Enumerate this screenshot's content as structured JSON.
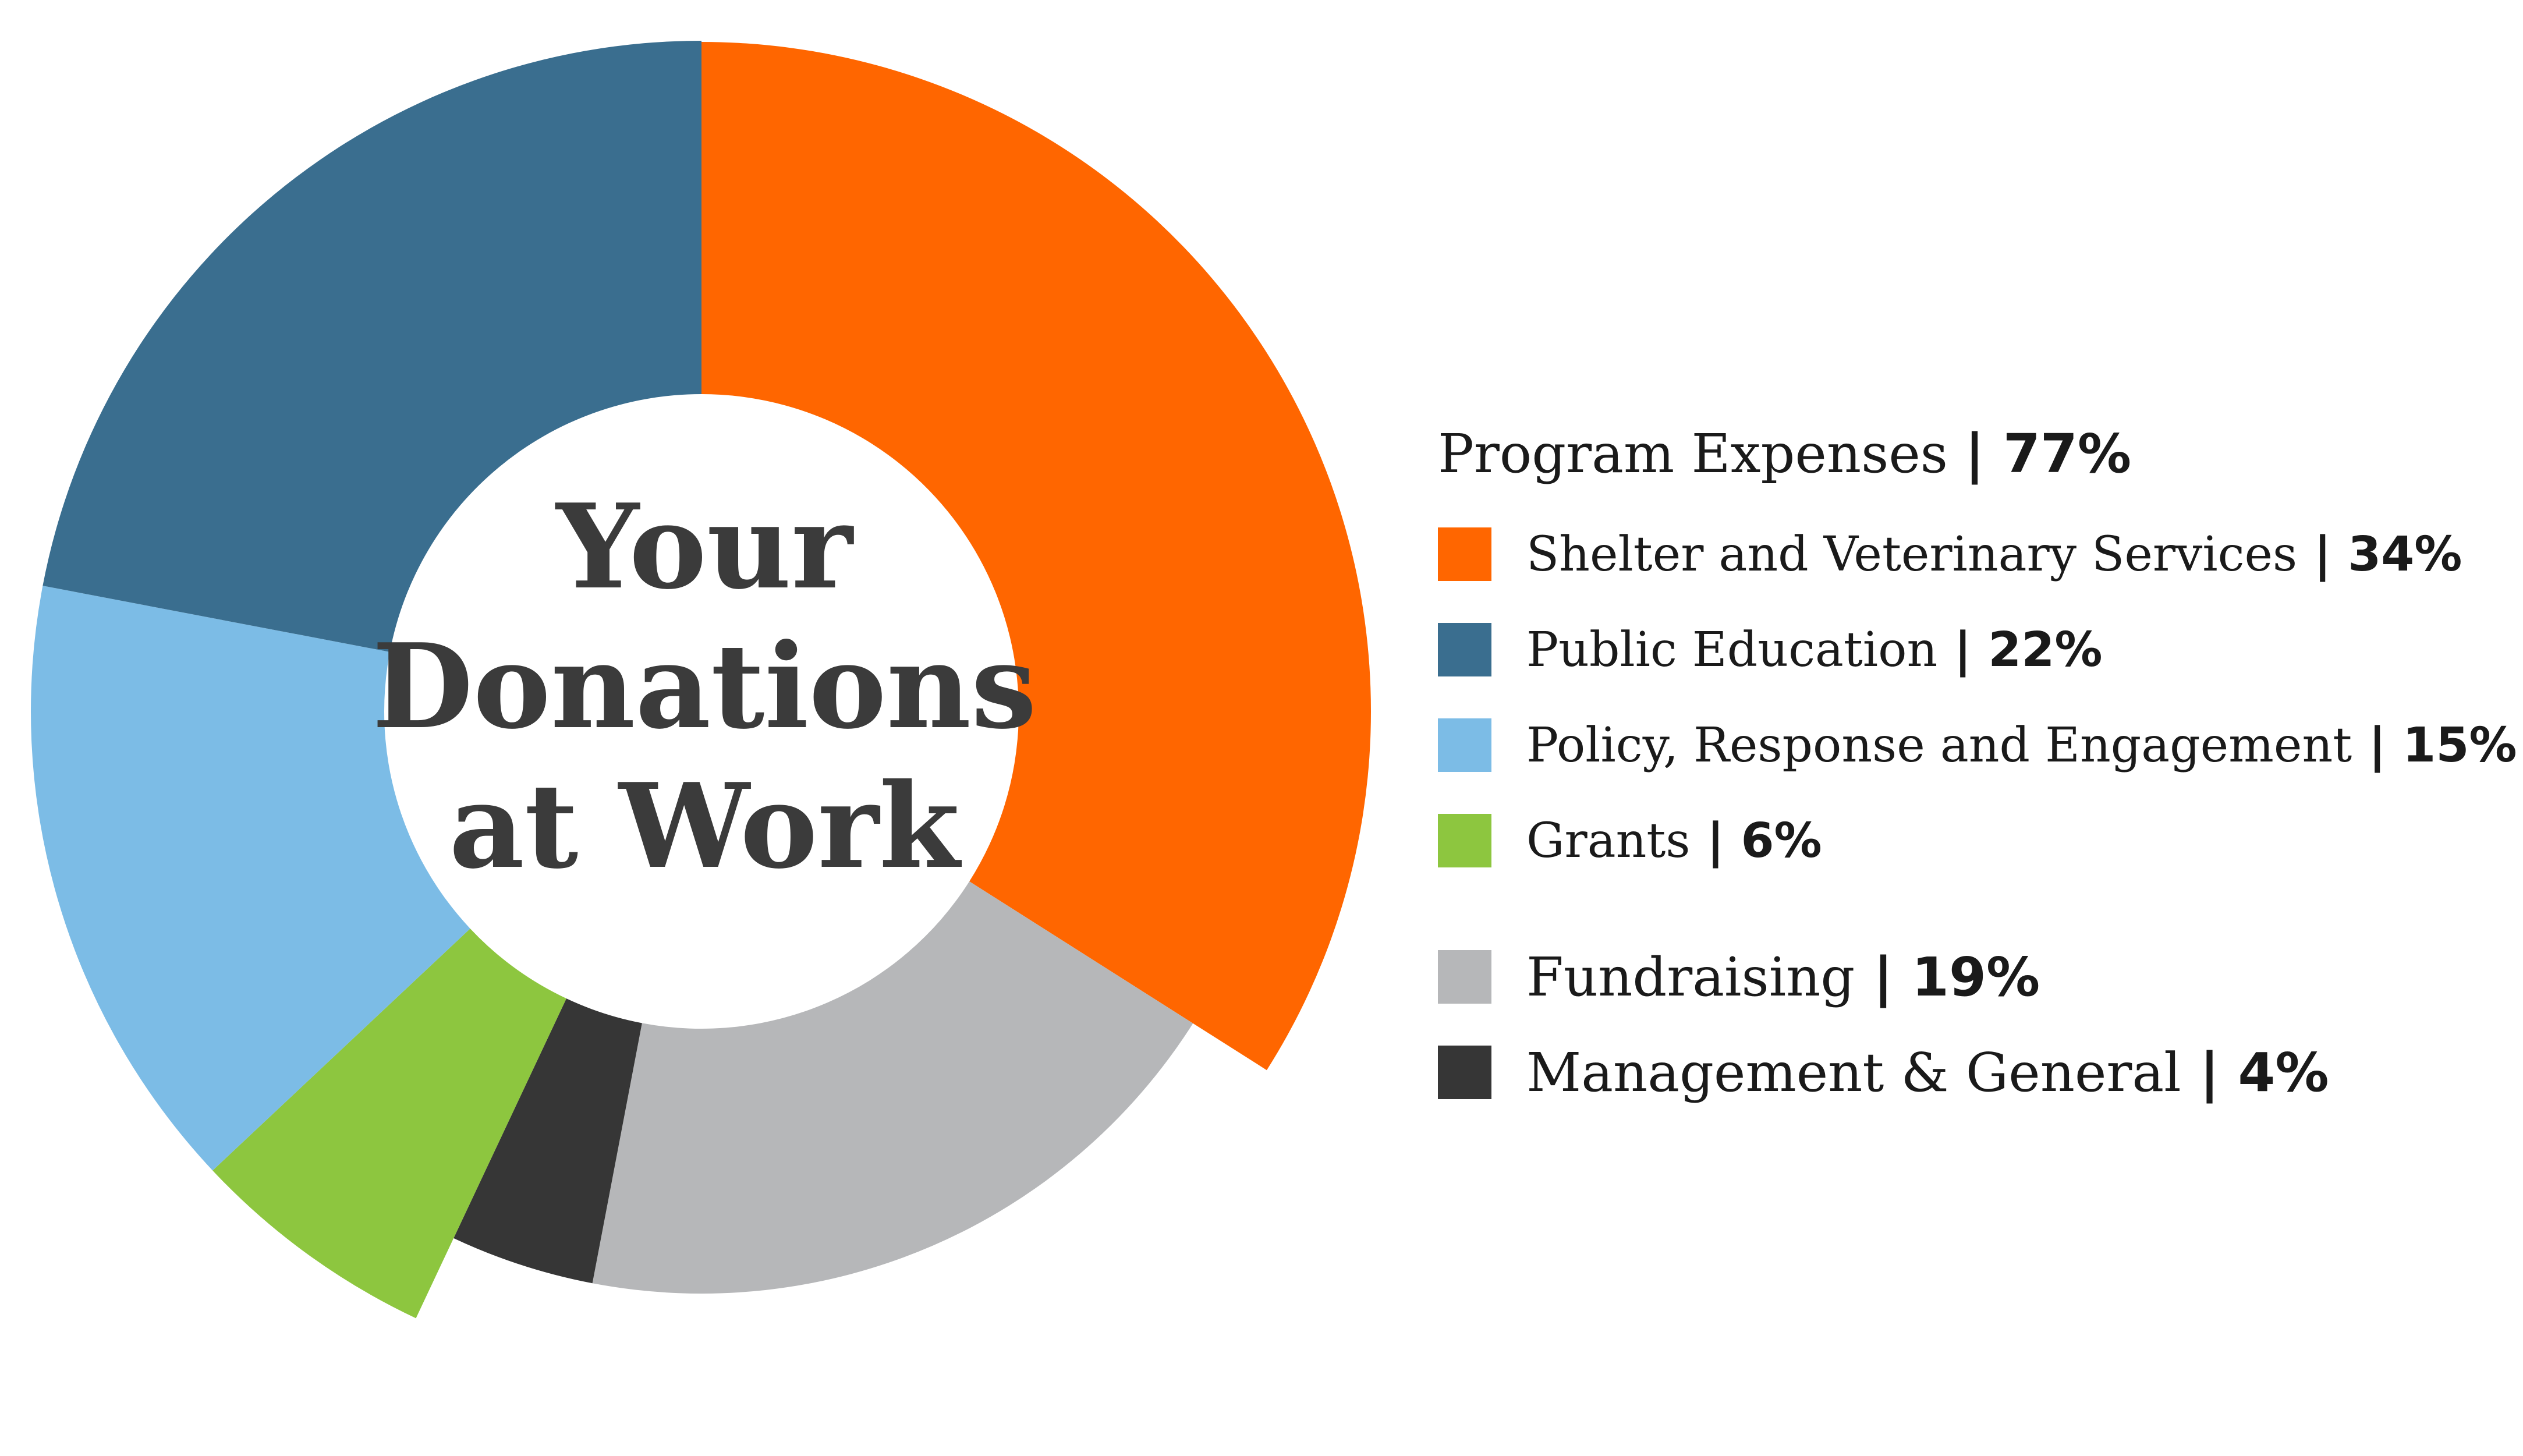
{
  "chart_data": {
    "type": "pie",
    "title": "Your Donations at Work",
    "title_lines": [
      "Your",
      "Donations",
      "at Work"
    ],
    "group": {
      "label": "Program Expenses",
      "value": 77,
      "display": "77%"
    },
    "slices": [
      {
        "key": "shelter",
        "label": "Shelter and Veterinary Services",
        "value": 34,
        "display": "34%",
        "color": "#ff6600",
        "radius": "outer"
      },
      {
        "key": "fundraising",
        "label": "Fundraising",
        "value": 19,
        "display": "19%",
        "color": "#b6b7b9",
        "radius": "inner"
      },
      {
        "key": "management",
        "label": "Management & General",
        "value": 4,
        "display": "4%",
        "color": "#363636",
        "radius": "inner"
      },
      {
        "key": "grants",
        "label": "Grants",
        "value": 6,
        "display": "6%",
        "color": "#8dc63f",
        "radius": "base"
      },
      {
        "key": "policy",
        "label": "Policy, Response and Engagement",
        "value": 15,
        "display": "15%",
        "color": "#7cbce6",
        "radius": "base"
      },
      {
        "key": "education",
        "label": "Public Education",
        "value": 22,
        "display": "22%",
        "color": "#3a6e8f",
        "radius": "base"
      }
    ],
    "legend": {
      "program_items": [
        "shelter",
        "education",
        "policy",
        "grants"
      ],
      "other_items": [
        "fundraising",
        "management"
      ]
    }
  }
}
